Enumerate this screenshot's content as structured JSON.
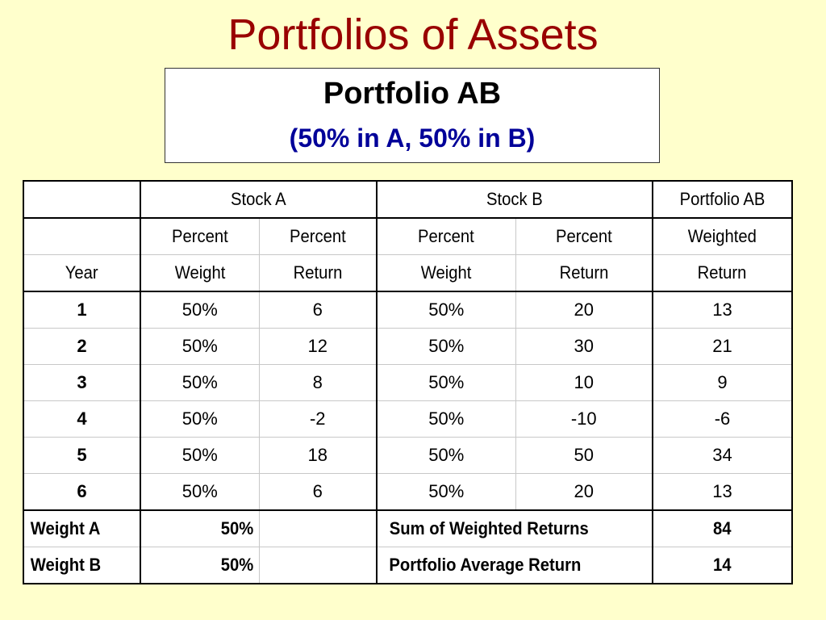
{
  "slide": {
    "title": "Portfolios of Assets"
  },
  "caption": {
    "title": "Portfolio AB",
    "subtitle": "(50% in A, 50% in B)"
  },
  "table": {
    "group_headers": {
      "stock_a": "Stock A",
      "stock_b": "Stock B",
      "portfolio": "Portfolio AB"
    },
    "sub_headers_row1": {
      "a_weight": "Percent",
      "a_return": "Percent",
      "b_weight": "Percent",
      "b_return": "Percent",
      "portfolio_return": "Weighted"
    },
    "sub_headers_row2": {
      "year": "Year",
      "a_weight": "Weight",
      "a_return": "Return",
      "b_weight": "Weight",
      "b_return": "Return",
      "portfolio_return": "Return"
    },
    "rows": [
      {
        "year": "1",
        "a_weight": "50%",
        "a_return": "6",
        "b_weight": "50%",
        "b_return": "20",
        "weighted_return": "13"
      },
      {
        "year": "2",
        "a_weight": "50%",
        "a_return": "12",
        "b_weight": "50%",
        "b_return": "30",
        "weighted_return": "21"
      },
      {
        "year": "3",
        "a_weight": "50%",
        "a_return": "8",
        "b_weight": "50%",
        "b_return": "10",
        "weighted_return": "9"
      },
      {
        "year": "4",
        "a_weight": "50%",
        "a_return": "-2",
        "b_weight": "50%",
        "b_return": "-10",
        "weighted_return": "-6"
      },
      {
        "year": "5",
        "a_weight": "50%",
        "a_return": "18",
        "b_weight": "50%",
        "b_return": "50",
        "weighted_return": "34"
      },
      {
        "year": "6",
        "a_weight": "50%",
        "a_return": "6",
        "b_weight": "50%",
        "b_return": "20",
        "weighted_return": "13"
      }
    ],
    "summary": [
      {
        "label": "Weight A",
        "value": "50%",
        "stat_label": "Sum of Weighted Returns",
        "stat_value": "84"
      },
      {
        "label": "Weight B",
        "value": "50%",
        "stat_label": "Portfolio Average Return",
        "stat_value": "14"
      }
    ]
  },
  "colors": {
    "background": "#ffffcc",
    "title": "#990000",
    "subtitle": "#000099"
  }
}
